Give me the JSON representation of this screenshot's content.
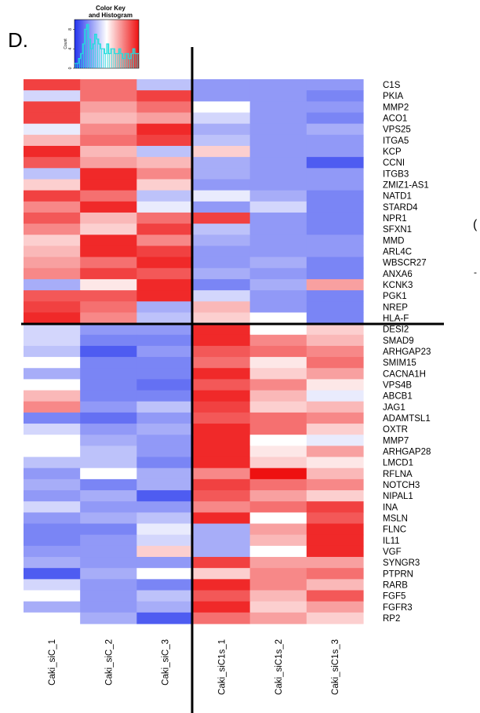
{
  "figure": {
    "panel_letter": "D.",
    "color_key_title_line1": "Color Key",
    "color_key_title_line2": "and Histogram",
    "color_key_ylabel": "Count",
    "color_key_yticks": [
      "0",
      "4",
      "8"
    ],
    "stray_glyph_1": "(",
    "stray_glyph_2": "-",
    "colors": {
      "low": "#2233ee",
      "mid": "#ffffff",
      "high": "#ee1111",
      "histogram": "#22dddd",
      "divider": "#000000"
    }
  },
  "chart_data": {
    "type": "heatmap",
    "title": "",
    "scale": "row z-score, blue (low) - white - red (high)",
    "samples": [
      "Caki_siC_1",
      "Caki_siC_2",
      "Caki_siC_3",
      "Caki_siC1s_1",
      "Caki_siC1s_2",
      "Caki_siC1s_3"
    ],
    "genes": [
      "C1S",
      "PKIA",
      "MMP2",
      "ACO1",
      "VPS25",
      "ITGA5",
      "KCP",
      "CCNI",
      "ITGB3",
      "ZMIZ1-AS1",
      "NATD1",
      "STARD4",
      "NPR1",
      "SFXN1",
      "MMD",
      "ARL4C",
      "WBSCR27",
      "ANXA6",
      "KCNK3",
      "PGK1",
      "NREP",
      "HLA-F",
      "DESI2",
      "SMAD9",
      "ARHGAP23",
      "SMIM15",
      "CACNA1H",
      "VPS4B",
      "ABCB1",
      "JAG1",
      "ADAMTSL1",
      "OXTR",
      "MMP7",
      "ARHGAP28",
      "LMCD1",
      "RFLNA",
      "NOTCH3",
      "NIPAL1",
      "INA",
      "MSLN",
      "FLNC",
      "IL11",
      "VGF",
      "SYNGR3",
      "PTPRN",
      "RARB",
      "FGF5",
      "FGFR3",
      "RP2"
    ],
    "values": [
      [
        0.8,
        0.6,
        -0.3,
        -0.5,
        -0.5,
        -0.5
      ],
      [
        -0.2,
        0.6,
        0.8,
        -0.5,
        -0.5,
        -0.6
      ],
      [
        0.8,
        0.4,
        0.6,
        0.0,
        -0.5,
        -0.5
      ],
      [
        0.8,
        0.3,
        0.4,
        -0.2,
        -0.5,
        -0.6
      ],
      [
        -0.1,
        0.5,
        0.9,
        -0.4,
        -0.5,
        -0.4
      ],
      [
        0.3,
        0.6,
        0.8,
        -0.3,
        -0.5,
        -0.5
      ],
      [
        0.9,
        0.3,
        -0.3,
        0.2,
        -0.5,
        -0.5
      ],
      [
        0.7,
        0.4,
        0.3,
        -0.4,
        -0.5,
        -0.8
      ],
      [
        -0.3,
        0.9,
        0.5,
        -0.4,
        -0.5,
        -0.5
      ],
      [
        0.2,
        0.9,
        0.2,
        -0.5,
        -0.5,
        -0.5
      ],
      [
        0.8,
        0.6,
        -0.3,
        -0.1,
        -0.4,
        -0.6
      ],
      [
        0.5,
        0.9,
        -0.1,
        -0.5,
        -0.2,
        -0.6
      ],
      [
        0.7,
        0.3,
        0.6,
        0.8,
        -0.5,
        -0.6
      ],
      [
        0.5,
        0.2,
        0.8,
        -0.3,
        -0.5,
        -0.6
      ],
      [
        0.2,
        0.9,
        0.5,
        -0.4,
        -0.5,
        -0.5
      ],
      [
        0.3,
        0.9,
        0.8,
        -0.5,
        -0.5,
        -0.5
      ],
      [
        0.4,
        0.6,
        0.9,
        -0.5,
        -0.4,
        -0.6
      ],
      [
        0.5,
        0.8,
        0.7,
        -0.4,
        -0.5,
        -0.6
      ],
      [
        -0.4,
        0.1,
        0.9,
        -0.6,
        -0.4,
        0.4
      ],
      [
        0.7,
        0.7,
        0.9,
        -0.2,
        -0.5,
        -0.6
      ],
      [
        0.8,
        0.6,
        -0.4,
        0.3,
        -0.5,
        -0.6
      ],
      [
        0.9,
        0.5,
        -0.3,
        0.2,
        0.0,
        -0.6
      ],
      [
        -0.2,
        -0.5,
        -0.5,
        0.9,
        0.0,
        0.2
      ],
      [
        -0.2,
        -0.6,
        -0.6,
        0.9,
        0.5,
        0.3
      ],
      [
        -0.3,
        -0.8,
        -0.5,
        0.7,
        0.6,
        0.5
      ],
      [
        0.0,
        -0.6,
        -0.6,
        0.6,
        0.1,
        0.6
      ],
      [
        -0.4,
        -0.6,
        -0.6,
        0.9,
        0.2,
        0.4
      ],
      [
        0.0,
        -0.6,
        -0.7,
        0.7,
        0.5,
        0.1
      ],
      [
        0.3,
        -0.6,
        -0.6,
        0.9,
        0.3,
        -0.1
      ],
      [
        0.5,
        -0.5,
        -0.3,
        0.8,
        0.2,
        0.3
      ],
      [
        -0.6,
        -0.7,
        -0.5,
        0.7,
        0.6,
        0.5
      ],
      [
        -0.2,
        -0.5,
        -0.4,
        0.9,
        0.6,
        0.2
      ],
      [
        0.0,
        -0.4,
        -0.5,
        0.9,
        0.0,
        -0.1
      ],
      [
        0.0,
        -0.3,
        -0.5,
        0.9,
        0.1,
        0.4
      ],
      [
        -0.3,
        -0.3,
        -0.6,
        0.9,
        0.2,
        0.1
      ],
      [
        -0.5,
        0.0,
        -0.4,
        0.5,
        1.0,
        0.3
      ],
      [
        -0.4,
        -0.6,
        -0.4,
        0.8,
        0.6,
        0.5
      ],
      [
        -0.5,
        -0.4,
        -0.8,
        0.7,
        0.4,
        0.2
      ],
      [
        -0.2,
        -0.5,
        -0.5,
        0.5,
        0.6,
        0.8
      ],
      [
        -0.5,
        -0.4,
        -0.3,
        0.9,
        0.0,
        0.7
      ],
      [
        -0.6,
        -0.6,
        -0.1,
        -0.4,
        0.4,
        0.9
      ],
      [
        -0.6,
        -0.5,
        -0.2,
        -0.4,
        0.3,
        0.9
      ],
      [
        -0.5,
        -0.5,
        0.2,
        -0.4,
        0.0,
        0.9
      ],
      [
        -0.4,
        -0.5,
        -0.5,
        0.8,
        0.4,
        0.4
      ],
      [
        -0.8,
        -0.4,
        0.0,
        0.2,
        0.5,
        0.6
      ],
      [
        -0.2,
        -0.5,
        -0.6,
        0.9,
        0.5,
        0.3
      ],
      [
        0.0,
        -0.5,
        -0.3,
        0.7,
        0.3,
        0.7
      ],
      [
        -0.4,
        -0.5,
        -0.4,
        0.9,
        0.2,
        0.4
      ],
      [
        0.0,
        -0.4,
        -0.8,
        0.6,
        0.4,
        0.2
      ]
    ],
    "color_key_histogram_counts": [
      1,
      1,
      2,
      3,
      5,
      8,
      9,
      6,
      4,
      5,
      7,
      6,
      5,
      4,
      4,
      3,
      5,
      3,
      4,
      4,
      3,
      3,
      4,
      3,
      2,
      3,
      3,
      2,
      3,
      4,
      3,
      3
    ]
  }
}
